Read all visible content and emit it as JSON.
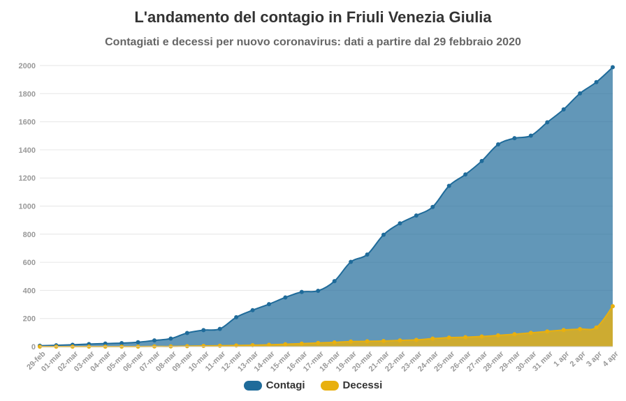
{
  "title": "L'andamento del contagio in Friuli Venezia Giulia",
  "subtitle": "Contagiati e decessi per nuovo coronavirus: dati a partire dal 29 febbraio 2020",
  "colors": {
    "contagi": "#1f6b9a",
    "decessi": "#e8b00f",
    "grid": "#e6e6e6",
    "axis_text": "#999999"
  },
  "chart_data": {
    "type": "area",
    "categories": [
      "29-feb",
      "01-mar",
      "02-mar",
      "03-mar",
      "04-mar",
      "05-mar",
      "06-mar",
      "07-mar",
      "08-mar",
      "09-mar",
      "10-mar",
      "11-mar",
      "12-mar",
      "13-mar",
      "14-mar",
      "15-mar",
      "16-mar",
      "17-mar",
      "18-mar",
      "19-mar",
      "20-mar",
      "21-mar",
      "22-mar",
      "23-mar",
      "24-mar",
      "25-mar",
      "26-mar",
      "27-mar",
      "28-mar",
      "29-mar",
      "30-mar",
      "31 mar",
      "1 apr",
      "2 apr",
      "3 apr",
      "4 apr"
    ],
    "series": [
      {
        "name": "Contagi",
        "color": "#1f6b9a",
        "values": [
          6,
          9,
          13,
          18,
          22,
          25,
          31,
          44,
          57,
          97,
          117,
          126,
          209,
          259,
          302,
          350,
          389,
          397,
          466,
          603,
          655,
          796,
          877,
          933,
          994,
          1144,
          1225,
          1321,
          1439,
          1483,
          1501,
          1596,
          1688,
          1802,
          1882,
          1988
        ]
      },
      {
        "name": "Decessi",
        "color": "#e8b00f",
        "values": [
          0,
          0,
          0,
          0,
          0,
          0,
          0,
          1,
          1,
          3,
          5,
          6,
          8,
          10,
          13,
          17,
          21,
          26,
          30,
          36,
          38,
          40,
          44,
          48,
          57,
          64,
          67,
          72,
          80,
          88,
          98,
          108,
          118,
          125,
          136,
          287
        ]
      }
    ],
    "y_ticks": [
      0,
      200,
      400,
      600,
      800,
      1000,
      1200,
      1400,
      1600,
      1800,
      2000
    ],
    "ylim": [
      0,
      2000
    ],
    "grid": true,
    "legend_position": "bottom-center"
  }
}
